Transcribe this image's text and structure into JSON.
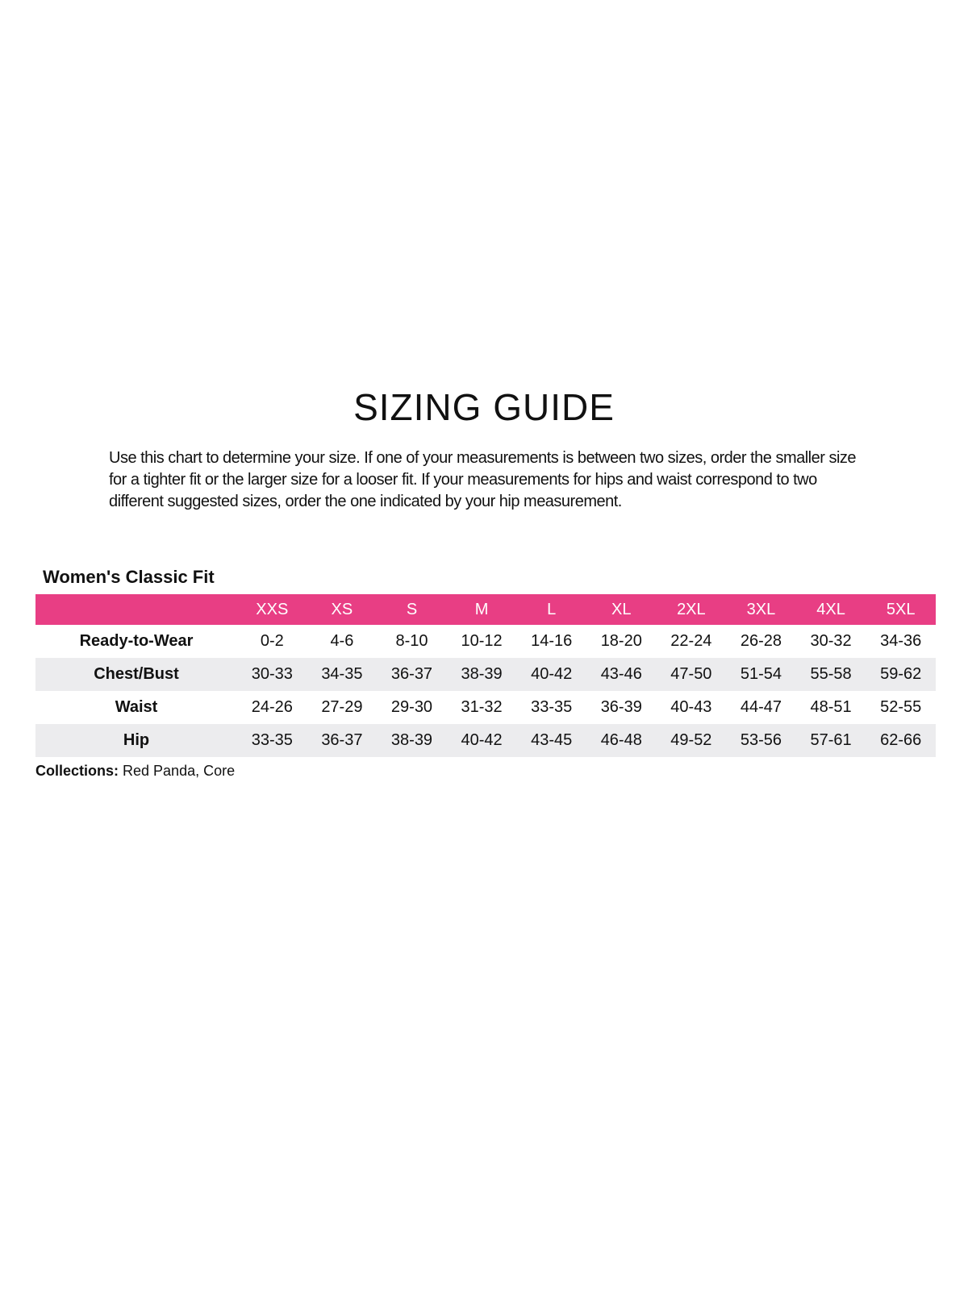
{
  "title": "SIZING GUIDE",
  "intro": "Use this chart to determine your size. If one of your measurements is between two sizes, order the smaller size for a tighter fit or the larger size for a looser fit. If your measurements for hips and waist correspond to two different suggested sizes, order the one indicated by your hip measurement.",
  "table_title": "Women's Classic Fit",
  "header_color": "#e83e84",
  "sizes": [
    "XXS",
    "XS",
    "S",
    "M",
    "L",
    "XL",
    "2XL",
    "3XL",
    "4XL",
    "5XL"
  ],
  "rows": [
    {
      "label": "Ready-to-Wear",
      "values": [
        "0-2",
        "4-6",
        "8-10",
        "10-12",
        "14-16",
        "18-20",
        "22-24",
        "26-28",
        "30-32",
        "34-36"
      ]
    },
    {
      "label": "Chest/Bust",
      "values": [
        "30-33",
        "34-35",
        "36-37",
        "38-39",
        "40-42",
        "43-46",
        "47-50",
        "51-54",
        "55-58",
        "59-62"
      ]
    },
    {
      "label": "Waist",
      "values": [
        "24-26",
        "27-29",
        "29-30",
        "31-32",
        "33-35",
        "36-39",
        "40-43",
        "44-47",
        "48-51",
        "52-55"
      ]
    },
    {
      "label": "Hip",
      "values": [
        "33-35",
        "36-37",
        "38-39",
        "40-42",
        "43-45",
        "46-48",
        "49-52",
        "53-56",
        "57-61",
        "62-66"
      ]
    }
  ],
  "collections": {
    "label": "Collections:",
    "value": " Red Panda, Core"
  }
}
